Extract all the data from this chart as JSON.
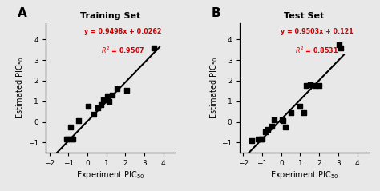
{
  "panel_A": {
    "title": "Training Set",
    "label": "A",
    "scatter_x": [
      -1.1,
      -1.05,
      -0.9,
      -0.85,
      -0.75,
      -0.45,
      0.05,
      0.35,
      0.55,
      0.7,
      0.85,
      1.05,
      1.15,
      1.3,
      1.55,
      2.05,
      3.5
    ],
    "scatter_y": [
      -0.85,
      -0.85,
      -0.25,
      -0.85,
      -0.85,
      0.05,
      0.75,
      0.35,
      0.68,
      0.82,
      1.05,
      1.25,
      1.0,
      1.3,
      1.6,
      1.55,
      3.6
    ],
    "line_x": [
      -1.85,
      3.8
    ],
    "line_slope": 0.9498,
    "line_intercept": 0.0262,
    "eq_text": "y = 0.9498x + 0.0262",
    "r2_text": "$R^2$ = 0.9507",
    "xlim": [
      -2.2,
      4.6
    ],
    "ylim": [
      -1.5,
      4.8
    ],
    "xticks": [
      -2,
      -1,
      0,
      1,
      2,
      3,
      4
    ],
    "yticks": [
      -1,
      0,
      1,
      2,
      3,
      4
    ],
    "xlabel": "Experiment PIC$_{50}$",
    "ylabel": "Estimated PIC$_{50}$"
  },
  "panel_B": {
    "title": "Test Set",
    "label": "B",
    "scatter_x": [
      -1.55,
      -1.2,
      -1.05,
      -1.0,
      -0.85,
      -0.7,
      -0.5,
      -0.35,
      0.05,
      0.1,
      0.2,
      0.5,
      1.0,
      1.2,
      1.3,
      1.55,
      1.8,
      2.0,
      3.05,
      3.15
    ],
    "scatter_y": [
      -0.9,
      -0.85,
      -0.85,
      -0.85,
      -0.5,
      -0.35,
      -0.2,
      0.1,
      0.1,
      0.07,
      -0.25,
      0.45,
      0.75,
      0.45,
      1.75,
      1.8,
      1.75,
      1.75,
      3.75,
      3.6
    ],
    "line_x": [
      -1.9,
      3.3
    ],
    "line_slope": 0.9503,
    "line_intercept": 0.121,
    "eq_text": "y = 0.9503x + 0.121",
    "r2_text": "$R^2$ = 0.8531",
    "xlim": [
      -2.2,
      4.6
    ],
    "ylim": [
      -1.5,
      4.8
    ],
    "xticks": [
      -2,
      -1,
      0,
      1,
      2,
      3,
      4
    ],
    "yticks": [
      -1,
      0,
      1,
      2,
      3,
      4
    ],
    "xlabel": "Experiment PIC$_{50}$",
    "ylabel": "Estimated PIC$_{50}$"
  },
  "scatter_color": "#000000",
  "line_color": "#000000",
  "eq_color": "#cc0000",
  "bg_color": "#e8e8e8",
  "marker": "s",
  "marker_size": 4,
  "line_width": 1.5
}
